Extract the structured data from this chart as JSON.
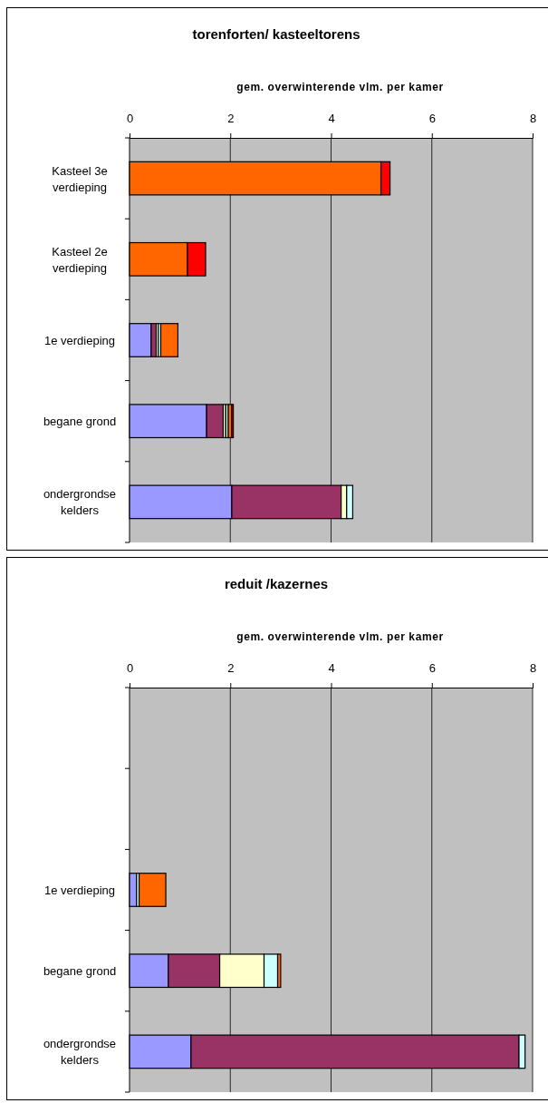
{
  "chart_data": [
    {
      "type": "bar",
      "title": "torenforten/ kasteeltorens",
      "xlabel": "gem. overwinterende vlm. per kamer",
      "orientation": "horizontal",
      "stacked": true,
      "grid": "x",
      "categories": [
        "Kasteel 3e verdieping",
        "Kasteel 2e verdieping",
        "1e verdieping",
        "begane grond",
        "ondergrondse kelders"
      ],
      "xlim": [
        0,
        8
      ],
      "xticks": [
        0,
        2,
        4,
        6,
        8
      ],
      "series": [
        {
          "color": "#9999ff",
          "values": [
            0,
            0,
            0.43,
            1.53,
            2.03
          ]
        },
        {
          "color": "#993366",
          "values": [
            0,
            0,
            0.1,
            0.33,
            2.17
          ]
        },
        {
          "color": "#ffffcc",
          "values": [
            0,
            0,
            0.04,
            0.05,
            0.11
          ]
        },
        {
          "color": "#ccffff",
          "values": [
            0,
            0,
            0.05,
            0.05,
            0.12
          ]
        },
        {
          "color": "#ff6600",
          "values": [
            4.99,
            1.15,
            0.34,
            0.07,
            0
          ]
        },
        {
          "color": "#ff0000",
          "values": [
            0.18,
            0.36,
            0,
            0.03,
            0
          ]
        }
      ]
    },
    {
      "type": "bar",
      "title": "reduit /kazernes",
      "xlabel": "gem. overwinterende vlm. per kamer",
      "orientation": "horizontal",
      "stacked": true,
      "grid": "x",
      "categories": [
        null,
        null,
        "1e verdieping",
        "begane grond",
        "ondergrondse kelders"
      ],
      "xlim": [
        0,
        8
      ],
      "xticks": [
        0,
        2,
        4,
        6,
        8
      ],
      "series": [
        {
          "color": "#9999ff",
          "values": [
            0,
            0,
            0.14,
            0.77,
            1.22
          ]
        },
        {
          "color": "#993366",
          "values": [
            0,
            0,
            0,
            1.02,
            6.51
          ]
        },
        {
          "color": "#ffffcc",
          "values": [
            0,
            0,
            0,
            0.88,
            0
          ]
        },
        {
          "color": "#ccffff",
          "values": [
            0,
            0,
            0.05,
            0.27,
            0.12
          ]
        },
        {
          "color": "#ff6600",
          "values": [
            0,
            0,
            0.53,
            0.06,
            0
          ]
        }
      ]
    }
  ]
}
